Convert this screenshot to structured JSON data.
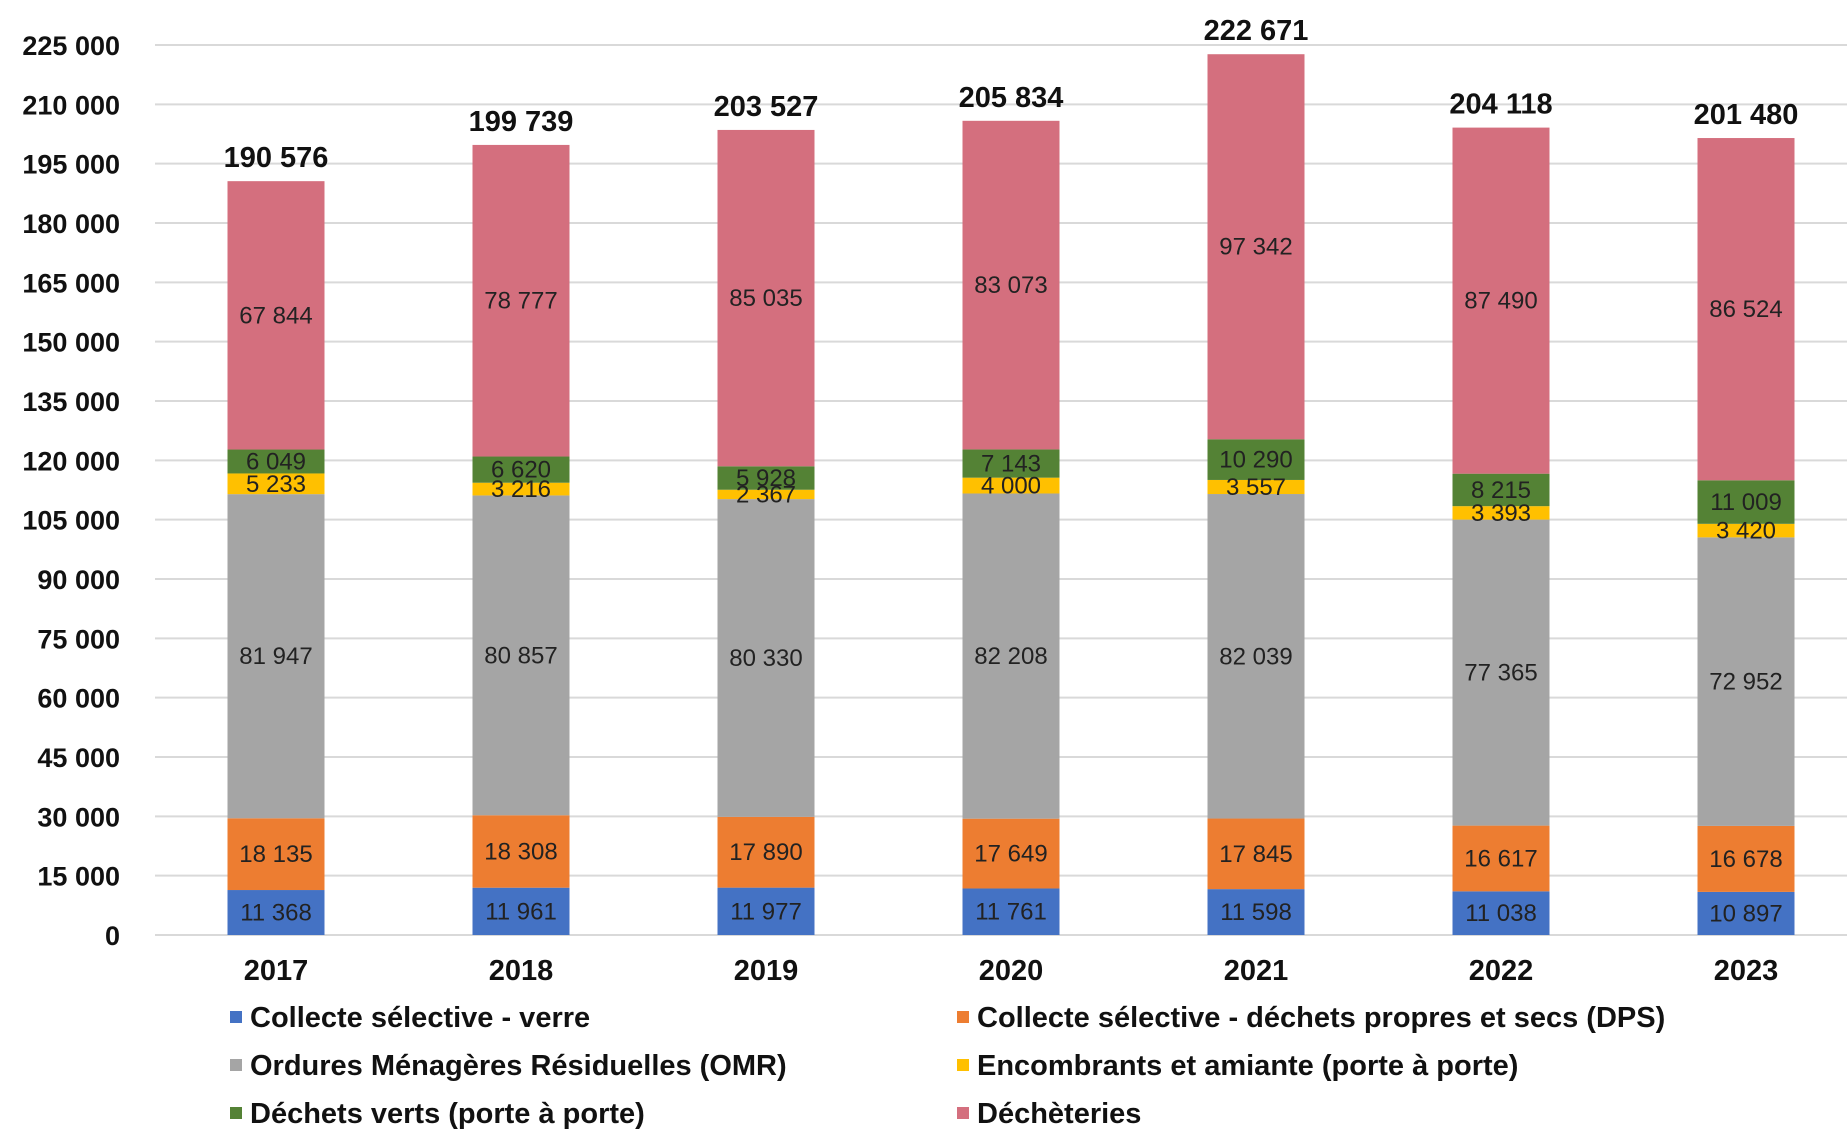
{
  "chart_data": {
    "type": "bar",
    "stacked": true,
    "categories": [
      "2017",
      "2018",
      "2019",
      "2020",
      "2021",
      "2022",
      "2023"
    ],
    "series": [
      {
        "name": "Collecte sélective - verre",
        "color": "#4472C4",
        "values": [
          11368,
          11961,
          11977,
          11761,
          11598,
          11038,
          10897
        ],
        "labels": [
          "11 368",
          "11 961",
          "11 977",
          "11 761",
          "11 598",
          "11 038",
          "10 897"
        ]
      },
      {
        "name": "Collecte sélective - déchets propres et secs (DPS)",
        "color": "#ED7D31",
        "values": [
          18135,
          18308,
          17890,
          17649,
          17845,
          16617,
          16678
        ],
        "labels": [
          "18 135",
          "18 308",
          "17 890",
          "17 649",
          "17 845",
          "16 617",
          "16 678"
        ]
      },
      {
        "name": "Ordures Ménagères Résiduelles (OMR)",
        "color": "#A5A5A5",
        "values": [
          81947,
          80857,
          80330,
          82208,
          82039,
          77365,
          72952
        ],
        "labels": [
          "81 947",
          "80 857",
          "80 330",
          "82 208",
          "82 039",
          "77 365",
          "72 952"
        ]
      },
      {
        "name": "Encombrants et amiante (porte à porte)",
        "color": "#FFC000",
        "values": [
          5233,
          3216,
          2367,
          4000,
          3557,
          3393,
          3420
        ],
        "labels": [
          "5 233",
          "3 216",
          "2 367",
          "4 000",
          "3 557",
          "3 393",
          "3 420"
        ]
      },
      {
        "name": "Déchets verts (porte à porte)",
        "color": "#548235",
        "values": [
          6049,
          6620,
          5928,
          7143,
          10290,
          8215,
          11009
        ],
        "labels": [
          "6 049",
          "6 620",
          "5 928",
          "7 143",
          "10 290",
          "8 215",
          "11 009"
        ]
      },
      {
        "name": "Déchèteries",
        "color": "#D46F7E",
        "values": [
          67844,
          78777,
          85035,
          83073,
          97342,
          87490,
          86524
        ],
        "labels": [
          "67 844",
          "78 777",
          "85 035",
          "83 073",
          "97 342",
          "87 490",
          "86 524"
        ]
      }
    ],
    "totals": [
      "190 576",
      "199 739",
      "203 527",
      "205 834",
      "222 671",
      "204 118",
      "201 480"
    ],
    "y_ticks": [
      0,
      15000,
      30000,
      45000,
      60000,
      75000,
      90000,
      105000,
      120000,
      135000,
      150000,
      165000,
      180000,
      195000,
      210000,
      225000
    ],
    "y_tick_labels": [
      "0",
      "15 000",
      "30 000",
      "45 000",
      "60 000",
      "75 000",
      "90 000",
      "105 000",
      "120 000",
      "135 000",
      "150 000",
      "165 000",
      "180 000",
      "195 000",
      "210 000",
      "225 000"
    ],
    "ylim": [
      0,
      225000
    ],
    "grid": true,
    "legend_position": "bottom"
  }
}
